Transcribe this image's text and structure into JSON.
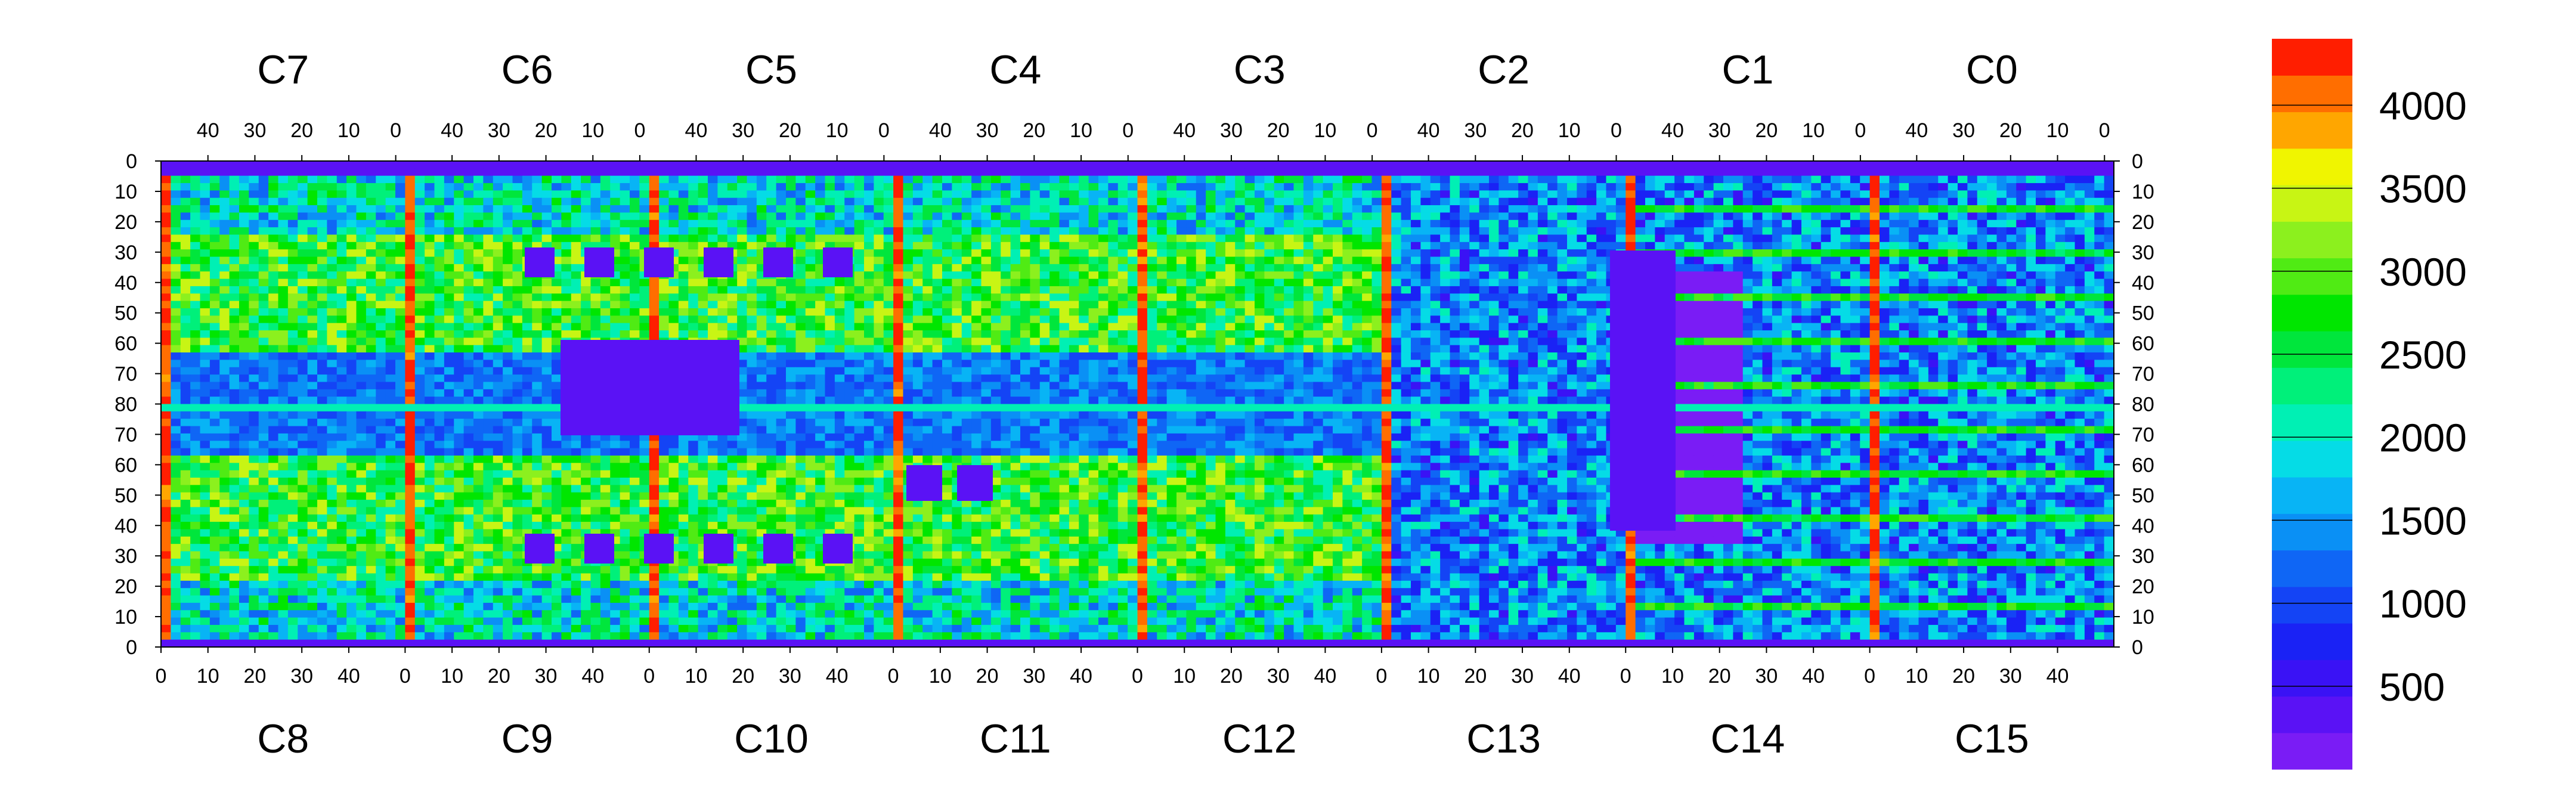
{
  "chart_data": {
    "type": "heatmap",
    "title": "",
    "xlabel": "",
    "ylabel": "",
    "top_chips": [
      "C7",
      "C6",
      "C5",
      "C4",
      "C3",
      "C2",
      "C1",
      "C0"
    ],
    "bottom_chips": [
      "C8",
      "C9",
      "C10",
      "C11",
      "C12",
      "C13",
      "C14",
      "C15"
    ],
    "top_x_ticks": [
      "40",
      "30",
      "20",
      "10",
      "0"
    ],
    "bottom_x_ticks": [
      "0",
      "10",
      "20",
      "30",
      "40"
    ],
    "y_ticks": [
      "0",
      "10",
      "20",
      "30",
      "40",
      "50",
      "60",
      "70",
      "80",
      "70",
      "60",
      "50",
      "40",
      "30",
      "20",
      "10",
      "0"
    ],
    "x_range_per_chip": [
      0,
      52
    ],
    "y_range": [
      0,
      80
    ],
    "colorbar": {
      "range": [
        0,
        4400
      ],
      "tick_labels": [
        "500",
        "1000",
        "1500",
        "2000",
        "2500",
        "3000",
        "3500",
        "4000"
      ],
      "tick_values": [
        500,
        1000,
        1500,
        2000,
        2500,
        3000,
        3500,
        4000
      ],
      "levels": 20,
      "colors": [
        "#7a1cf5",
        "#5a12f5",
        "#3a12f5",
        "#1a22f5",
        "#1444f5",
        "#0f66f5",
        "#0a90f5",
        "#08b4f5",
        "#05dce6",
        "#00f0b4",
        "#00f07a",
        "#00e63c",
        "#00e600",
        "#50eb14",
        "#8cf01e",
        "#c8f514",
        "#f0f500",
        "#ffa600",
        "#ff6e00",
        "#ff1e00"
      ]
    }
  }
}
